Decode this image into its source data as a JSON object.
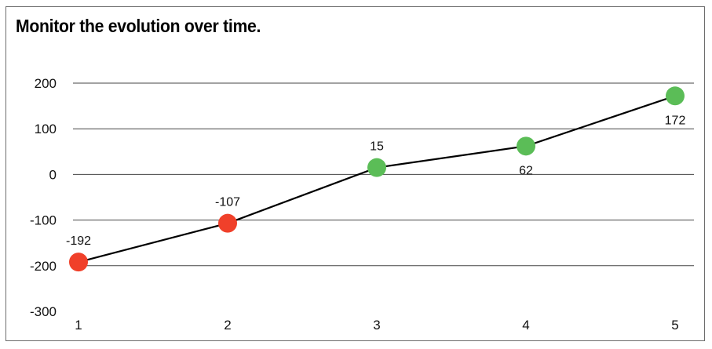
{
  "chart_data": {
    "type": "line",
    "title": "Monitor the evolution over time.",
    "x": [
      1,
      2,
      3,
      4,
      5
    ],
    "values": [
      -192,
      -107,
      15,
      62,
      172
    ],
    "data_labels": [
      "-192",
      "-107",
      "15",
      "62",
      "172"
    ],
    "x_tick_labels": [
      "1",
      "2",
      "3",
      "4",
      "5"
    ],
    "y_tick_values": [
      200,
      100,
      0,
      -100,
      -200,
      -300
    ],
    "y_tick_labels": [
      "200",
      "100",
      "0",
      "-100",
      "-200",
      "-300"
    ],
    "ylim": [
      -300,
      200
    ],
    "xlim": [
      1,
      5
    ],
    "grid": true,
    "legend": "none",
    "colors": {
      "line": "#000000",
      "negative_point": "#f0402a",
      "positive_point": "#5bbd57",
      "grid": "#444444"
    }
  }
}
